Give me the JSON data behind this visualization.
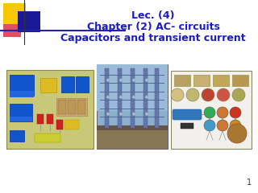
{
  "title_line1": "Lec. (4)",
  "title_line2": "Chapter (2) AC- circuits",
  "title_line3": "Capacitors and transient current",
  "title_color": "#1a1acc",
  "bg_color": "#ffffff",
  "page_number": "1",
  "logo": {
    "yellow": "#f5c800",
    "red_pink": "#e05060",
    "blue_dark": "#1a1a99",
    "line_color": "#2222aa",
    "vline_color": "#333333"
  }
}
